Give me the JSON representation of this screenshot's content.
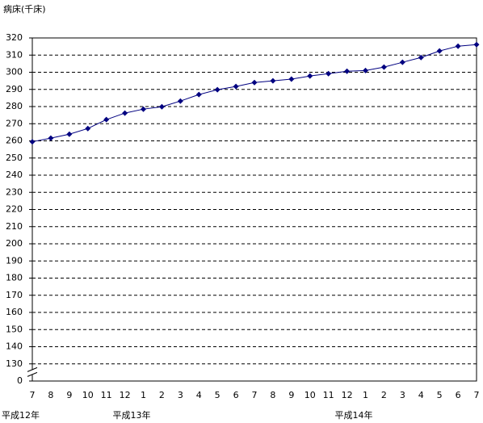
{
  "chart_data": {
    "type": "line",
    "y_axis_label": "病床(千床)",
    "categories": [
      "7",
      "8",
      "9",
      "10",
      "11",
      "12",
      "1",
      "2",
      "3",
      "4",
      "5",
      "6",
      "7",
      "8",
      "9",
      "10",
      "11",
      "12",
      "1",
      "2",
      "3",
      "4",
      "5",
      "6",
      "7"
    ],
    "x_groups": [
      "平成12年",
      null,
      null,
      null,
      null,
      null,
      "平成13年",
      null,
      null,
      null,
      null,
      null,
      null,
      null,
      null,
      null,
      null,
      null,
      "平成14年",
      null,
      null,
      null,
      null,
      null,
      null
    ],
    "series": [
      {
        "color": "#000080",
        "values": [
          259.5,
          261.6,
          263.9,
          267.2,
          272.4,
          276.2,
          278.5,
          279.9,
          283.2,
          287,
          289.8,
          291.7,
          294,
          295,
          296,
          297.8,
          299.2,
          300.6,
          301,
          303,
          305.8,
          308.6,
          312.4,
          315.2,
          316.1
        ]
      }
    ],
    "ylim": [
      0,
      320
    ],
    "yticks": [
      0,
      130,
      140,
      150,
      160,
      170,
      180,
      190,
      200,
      210,
      220,
      230,
      240,
      250,
      260,
      270,
      280,
      290,
      300,
      310,
      320
    ],
    "axis_break": true,
    "grid": true
  }
}
